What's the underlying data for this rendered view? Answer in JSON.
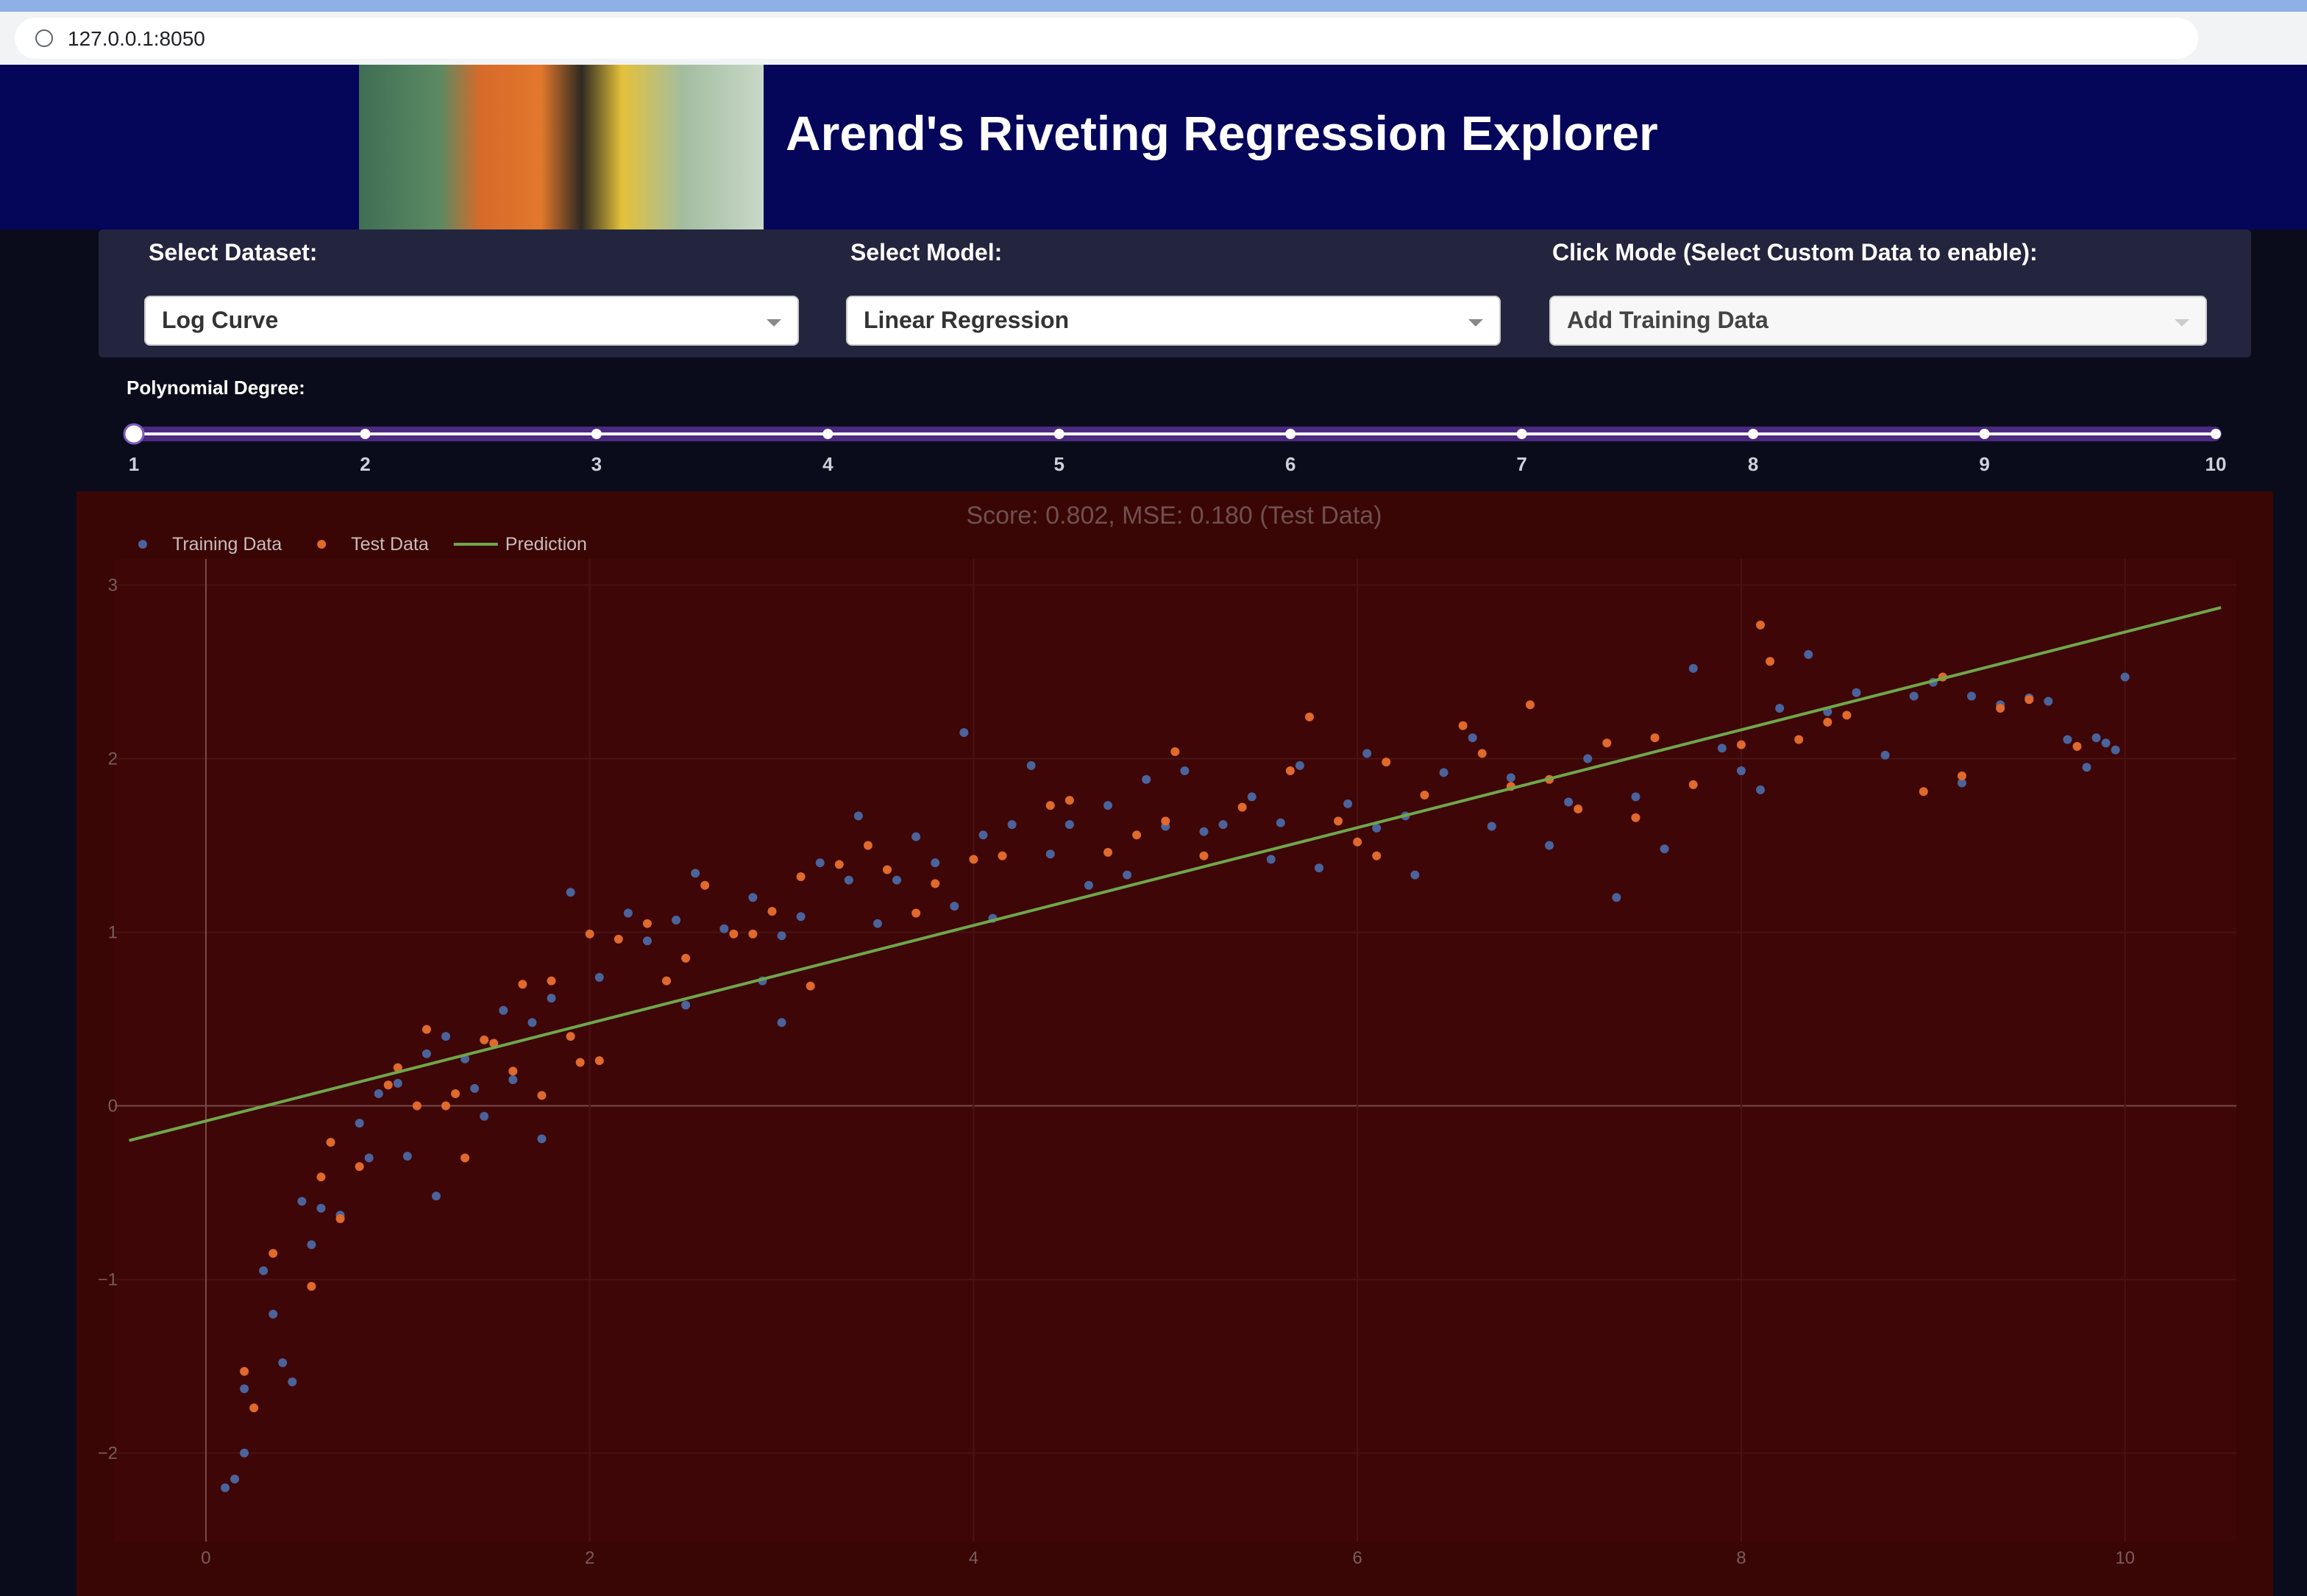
{
  "browser": {
    "url": "127.0.0.1:8050"
  },
  "header": {
    "title": "Arend's Riveting Regression Explorer"
  },
  "controls": [
    {
      "label": "Select Dataset:",
      "value": "Log Curve"
    },
    {
      "label": "Select Model:",
      "value": "Linear Regression"
    },
    {
      "label": "Click Mode (Select Custom Data to enable):",
      "value": "Add Training Data"
    }
  ],
  "slider": {
    "label": "Polynomial Degree:",
    "min": 1,
    "max": 10,
    "value": 1,
    "marks": [
      1,
      2,
      3,
      4,
      5,
      6,
      7,
      8,
      9,
      10
    ]
  },
  "chart_data": {
    "type": "scatter",
    "title": "Score: 0.802, MSE: 0.180 (Test Data)",
    "xlim": [
      -0.475,
      10.58
    ],
    "ylim": [
      -2.51,
      3.15
    ],
    "xticks": [
      0,
      2,
      4,
      6,
      8,
      10
    ],
    "yticks": [
      {
        "value": -2,
        "label": "−2"
      },
      {
        "value": -1,
        "label": "−1"
      },
      0,
      1,
      2,
      3
    ],
    "grid": true,
    "zeroline": true,
    "series": [
      {
        "name": "Training Data",
        "mode": "markers",
        "color": "#4a639c",
        "x": [
          0.1,
          0.15,
          0.2,
          0.2,
          0.3,
          0.35,
          0.4,
          0.45,
          0.5,
          0.55,
          0.6,
          0.7,
          0.8,
          0.85,
          0.9,
          1.0,
          1.05,
          1.15,
          1.2,
          1.25,
          1.35,
          1.4,
          1.45,
          1.55,
          1.6,
          1.7,
          1.75,
          1.8,
          1.9,
          2.05,
          2.2,
          2.3,
          2.45,
          2.5,
          2.55,
          2.7,
          2.85,
          2.9,
          3.0,
          3.0,
          3.1,
          3.2,
          3.35,
          3.4,
          3.5,
          3.6,
          3.7,
          3.8,
          3.9,
          3.95,
          4.05,
          4.1,
          4.2,
          4.3,
          4.4,
          4.5,
          4.6,
          4.7,
          4.8,
          4.9,
          5.0,
          5.1,
          5.2,
          5.3,
          5.45,
          5.55,
          5.6,
          5.7,
          5.8,
          5.95,
          6.05,
          6.1,
          6.25,
          6.3,
          6.45,
          6.6,
          6.7,
          6.8,
          7.0,
          7.1,
          7.2,
          7.35,
          7.45,
          7.6,
          7.75,
          7.9,
          8.0,
          8.1,
          8.2,
          8.35,
          8.45,
          8.6,
          8.75,
          8.9,
          9.0,
          9.15,
          9.2,
          9.35,
          9.5,
          9.6,
          9.7,
          9.8,
          9.85,
          9.9,
          9.95,
          10.0
        ],
        "values": [
          -2.2,
          -2.15,
          -2.0,
          -1.63,
          -0.95,
          -1.2,
          -1.48,
          -1.59,
          -0.55,
          -0.8,
          -0.59,
          -0.63,
          -0.1,
          -0.3,
          0.07,
          0.13,
          -0.29,
          0.3,
          -0.52,
          0.4,
          0.27,
          0.1,
          -0.06,
          0.55,
          0.15,
          0.48,
          -0.19,
          0.62,
          1.23,
          0.74,
          1.11,
          0.95,
          1.07,
          0.58,
          1.34,
          1.02,
          1.2,
          0.72,
          0.98,
          0.48,
          1.09,
          1.4,
          1.3,
          1.67,
          1.05,
          1.3,
          1.55,
          1.4,
          1.15,
          2.15,
          1.56,
          1.08,
          1.62,
          1.96,
          1.45,
          1.62,
          1.27,
          1.73,
          1.33,
          1.88,
          1.61,
          1.93,
          1.58,
          1.62,
          1.78,
          1.42,
          1.63,
          1.96,
          1.37,
          1.74,
          2.03,
          1.6,
          1.67,
          1.33,
          1.92,
          2.12,
          1.61,
          1.89,
          1.5,
          1.75,
          2.0,
          1.2,
          1.78,
          1.48,
          2.52,
          2.06,
          1.93,
          1.82,
          2.29,
          2.6,
          2.27,
          2.38,
          2.02,
          2.36,
          2.44,
          1.86,
          2.36,
          2.31,
          2.35,
          2.33,
          2.11,
          1.95,
          2.12,
          2.09,
          2.05,
          2.47
        ]
      },
      {
        "name": "Test Data",
        "mode": "markers",
        "color": "#e0692c",
        "x": [
          0.2,
          0.25,
          0.35,
          0.55,
          0.6,
          0.65,
          0.7,
          0.8,
          0.95,
          1.0,
          1.1,
          1.15,
          1.25,
          1.3,
          1.35,
          1.45,
          1.5,
          1.6,
          1.65,
          1.75,
          1.8,
          1.9,
          1.95,
          2.0,
          2.05,
          2.15,
          2.3,
          2.4,
          2.5,
          2.6,
          2.75,
          2.85,
          2.95,
          3.1,
          3.15,
          3.3,
          3.45,
          3.55,
          3.7,
          3.8,
          4.0,
          4.15,
          4.4,
          4.5,
          4.7,
          4.85,
          5.0,
          5.05,
          5.2,
          5.4,
          5.65,
          5.75,
          5.9,
          6.0,
          6.1,
          6.15,
          6.35,
          6.55,
          6.65,
          6.8,
          6.9,
          7.0,
          7.15,
          7.3,
          7.45,
          7.55,
          7.75,
          8.0,
          8.1,
          8.15,
          8.3,
          8.45,
          8.55,
          8.95,
          9.05,
          9.15,
          9.35,
          9.5,
          9.75
        ],
        "values": [
          -1.53,
          -1.74,
          -0.85,
          -1.04,
          -0.41,
          -0.21,
          -0.65,
          -0.35,
          0.12,
          0.22,
          0.0,
          0.44,
          0.0,
          0.07,
          -0.3,
          0.38,
          0.36,
          0.2,
          0.7,
          0.06,
          0.72,
          0.4,
          0.25,
          0.99,
          0.26,
          0.96,
          1.05,
          0.72,
          0.85,
          1.27,
          0.99,
          0.99,
          1.12,
          1.32,
          0.69,
          1.39,
          1.5,
          1.36,
          1.11,
          1.28,
          1.42,
          1.44,
          1.73,
          1.76,
          1.46,
          1.56,
          1.64,
          2.04,
          1.44,
          1.72,
          1.93,
          2.24,
          1.64,
          1.52,
          1.44,
          1.98,
          1.79,
          2.19,
          2.03,
          1.84,
          2.31,
          1.88,
          1.71,
          2.09,
          1.66,
          2.12,
          1.85,
          2.08,
          2.77,
          2.56,
          2.11,
          2.21,
          2.25,
          1.81,
          2.47,
          1.9,
          2.29,
          2.34,
          2.07
        ]
      },
      {
        "name": "Prediction",
        "mode": "lines",
        "color": "#6fa84a",
        "x": [
          -0.4,
          10.5
        ],
        "values": [
          -0.2,
          2.87
        ]
      }
    ]
  }
}
